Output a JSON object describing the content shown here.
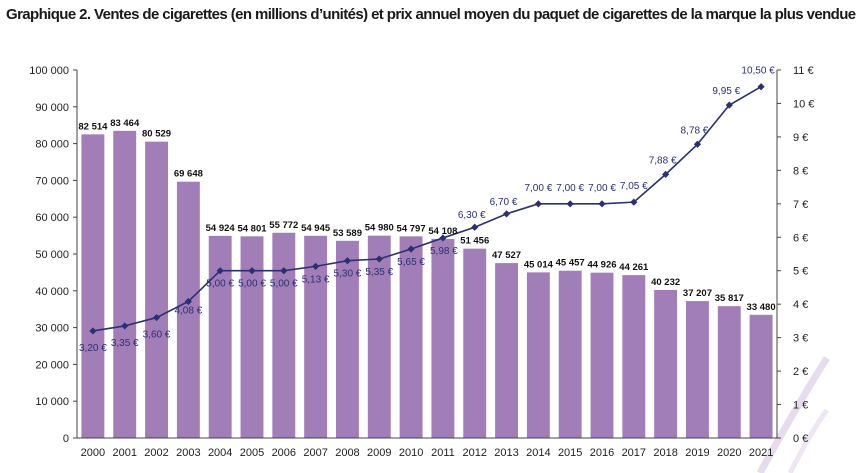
{
  "chart_data": {
    "type": "bar",
    "title": "Graphique 2. Ventes de cigarettes (en millions d’unités) et prix annuel moyen du paquet de cigarettes de la marque la plus vendue",
    "categories": [
      "2000",
      "2001",
      "2002",
      "2003",
      "2004",
      "2005",
      "2006",
      "2007",
      "2008",
      "2009",
      "2010",
      "2011",
      "2012",
      "2013",
      "2014",
      "2015",
      "2016",
      "2017",
      "2018",
      "2019",
      "2020",
      "2021"
    ],
    "series": [
      {
        "kind": "bar",
        "axis": "left",
        "color": "#a17eb8",
        "values": [
          82514,
          83464,
          80529,
          69648,
          54924,
          54801,
          55772,
          54945,
          53589,
          54980,
          54797,
          54108,
          51456,
          47527,
          45014,
          45457,
          44926,
          44261,
          40232,
          37207,
          35817,
          33480
        ],
        "labels": [
          "82 514",
          "83 464",
          "80 529",
          "69 648",
          "54 924",
          "54 801",
          "55 772",
          "54 945",
          "53 589",
          "54 980",
          "54 797",
          "54 108",
          "51 456",
          "47 527",
          "45 014",
          "45 457",
          "44 926",
          "44 261",
          "40 232",
          "37 207",
          "35 817",
          "33 480"
        ]
      },
      {
        "kind": "line",
        "axis": "right",
        "color": "#2c2f72",
        "values": [
          3.2,
          3.35,
          3.6,
          4.08,
          5.0,
          5.0,
          5.0,
          5.13,
          5.3,
          5.35,
          5.65,
          5.98,
          6.3,
          6.7,
          7.0,
          7.0,
          7.0,
          7.05,
          7.88,
          8.78,
          9.95,
          10.5
        ],
        "labels": [
          "3,20 €",
          "3,35 €",
          "3,60 €",
          "4,08 €",
          "5,00 €",
          "5,00 €",
          "5,00 €",
          "5,13 €",
          "5,30 €",
          "5,35 €",
          "5,65 €",
          "5,98 €",
          "6,30 €",
          "6,70 €",
          "7,00 €",
          "7,00 €",
          "7,00 €",
          "7,05 €",
          "7,88 €",
          "8,78 €",
          "9,95 €",
          "10,50 €"
        ]
      }
    ],
    "y_left": {
      "lim": [
        0,
        100000
      ],
      "ticks": [
        0,
        10000,
        20000,
        30000,
        40000,
        50000,
        60000,
        70000,
        80000,
        90000,
        100000
      ],
      "tick_labels": [
        "0",
        "10 000",
        "20 000",
        "30 000",
        "40 000",
        "50 000",
        "60 000",
        "70 000",
        "80 000",
        "90 000",
        "100 000"
      ]
    },
    "y_right": {
      "lim": [
        0,
        11
      ],
      "ticks": [
        0,
        1,
        2,
        3,
        4,
        5,
        6,
        7,
        8,
        9,
        10,
        11
      ],
      "tick_labels": [
        "0 €",
        "1 €",
        "2 €",
        "3 €",
        "4 €",
        "5 €",
        "6 €",
        "7 €",
        "8 €",
        "9 €",
        "10 €",
        "11 €"
      ]
    },
    "grid": false,
    "legend": "none"
  }
}
